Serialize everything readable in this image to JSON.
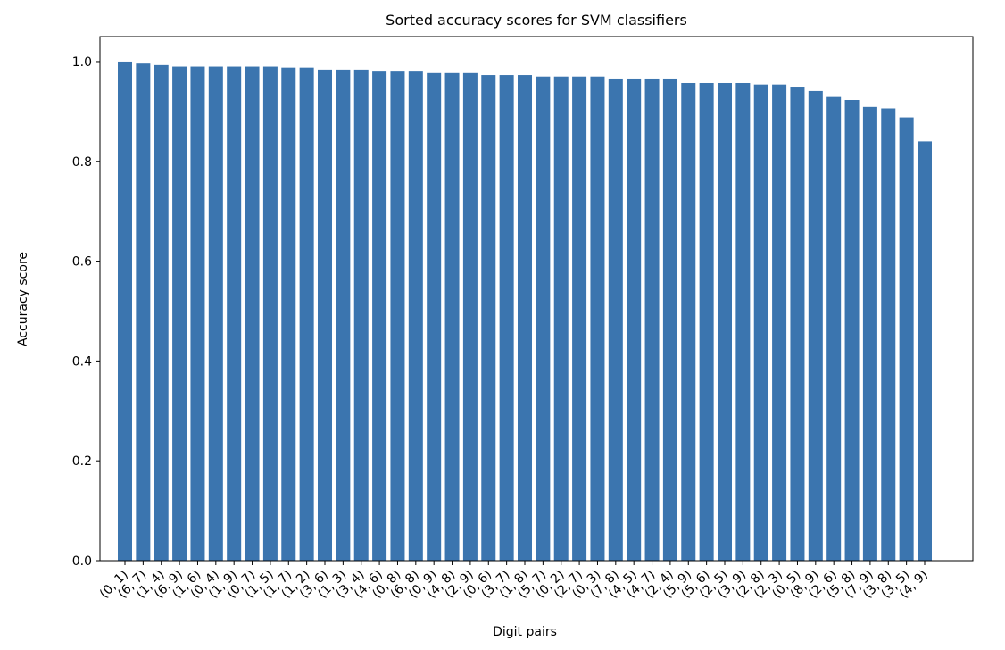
{
  "chart_data": {
    "type": "bar",
    "title": "Sorted accuracy scores for SVM classifiers",
    "xlabel": "Digit pairs",
    "ylabel": "Accuracy score",
    "categories": [
      "(0, 1)",
      "(6, 7)",
      "(1, 4)",
      "(6, 9)",
      "(1, 6)",
      "(0, 4)",
      "(1, 9)",
      "(0, 7)",
      "(1, 5)",
      "(1, 7)",
      "(1, 2)",
      "(3, 6)",
      "(1, 3)",
      "(3, 4)",
      "(4, 6)",
      "(0, 8)",
      "(6, 8)",
      "(0, 9)",
      "(4, 8)",
      "(2, 9)",
      "(0, 6)",
      "(3, 7)",
      "(1, 8)",
      "(5, 7)",
      "(0, 2)",
      "(2, 7)",
      "(0, 3)",
      "(7, 8)",
      "(4, 5)",
      "(4, 7)",
      "(2, 4)",
      "(5, 9)",
      "(5, 6)",
      "(2, 5)",
      "(3, 9)",
      "(2, 8)",
      "(2, 3)",
      "(0, 5)",
      "(8, 9)",
      "(2, 6)",
      "(5, 8)",
      "(7, 9)",
      "(3, 8)",
      "(3, 5)",
      "(4, 9)"
    ],
    "values": [
      1.0,
      0.996,
      0.993,
      0.99,
      0.99,
      0.99,
      0.99,
      0.99,
      0.99,
      0.988,
      0.988,
      0.984,
      0.984,
      0.984,
      0.98,
      0.98,
      0.98,
      0.977,
      0.977,
      0.977,
      0.973,
      0.973,
      0.973,
      0.97,
      0.97,
      0.97,
      0.97,
      0.966,
      0.966,
      0.966,
      0.966,
      0.957,
      0.957,
      0.957,
      0.957,
      0.954,
      0.954,
      0.948,
      0.941,
      0.929,
      0.923,
      0.909,
      0.906,
      0.888,
      0.84
    ],
    "color": "#3b75af",
    "ylim": [
      0,
      1.05
    ],
    "yticks": [
      {
        "value": 0,
        "label": "0.0"
      },
      {
        "value": 0.2,
        "label": "0.2"
      },
      {
        "value": 0.4,
        "label": "0.4"
      },
      {
        "value": 0.6,
        "label": "0.6"
      },
      {
        "value": 0.8,
        "label": "0.8"
      },
      {
        "value": 1,
        "label": "1.0"
      }
    ]
  }
}
